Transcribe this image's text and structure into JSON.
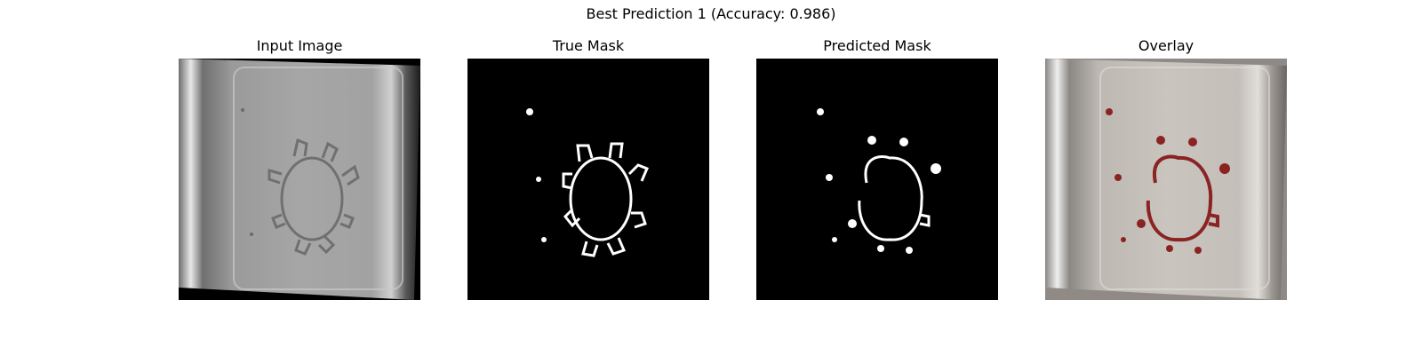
{
  "figure": {
    "title": "Best Prediction 1 (Accuracy: 0.986)"
  },
  "panels": [
    {
      "title": "Input Image",
      "icon": "input-image-photo"
    },
    {
      "title": "True Mask",
      "icon": "true-mask-image"
    },
    {
      "title": "Predicted Mask",
      "icon": "predicted-mask-image"
    },
    {
      "title": "Overlay",
      "icon": "overlay-image"
    }
  ],
  "colors": {
    "mask_foreground": "#ffffff",
    "mask_background": "#000000",
    "overlay_tint": "#8b2323"
  }
}
